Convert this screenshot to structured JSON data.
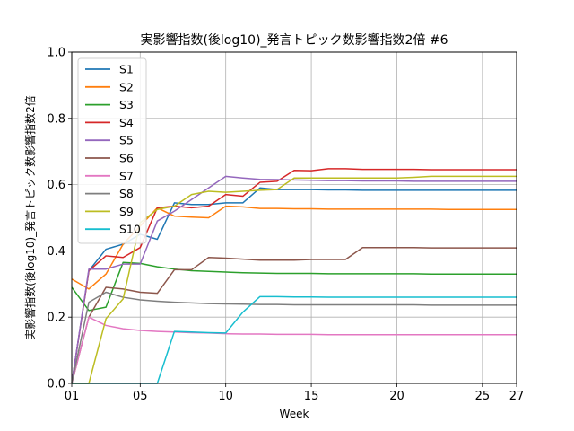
{
  "chart_data": {
    "type": "line",
    "title": "実影響指数(後log10)_発言トピック数影響指数2倍 #6",
    "xlabel": "Week",
    "ylabel": "実影響指数(後log10)_発言トピック数影響指数2倍",
    "xlim": [
      1,
      27
    ],
    "ylim": [
      0.0,
      1.0
    ],
    "x_ticks": [
      {
        "value": 1,
        "label": "01"
      },
      {
        "value": 5,
        "label": "05"
      },
      {
        "value": 10,
        "label": "10"
      },
      {
        "value": 15,
        "label": "15"
      },
      {
        "value": 20,
        "label": "20"
      },
      {
        "value": 25,
        "label": "25"
      },
      {
        "value": 27,
        "label": "27"
      }
    ],
    "y_ticks": [
      {
        "value": 0.0,
        "label": "0.0"
      },
      {
        "value": 0.2,
        "label": "0.2"
      },
      {
        "value": 0.4,
        "label": "0.4"
      },
      {
        "value": 0.6,
        "label": "0.6"
      },
      {
        "value": 0.8,
        "label": "0.8"
      },
      {
        "value": 1.0,
        "label": "1.0"
      }
    ],
    "grid": true,
    "legend_position": "top-left",
    "x": [
      1,
      2,
      3,
      4,
      5,
      6,
      7,
      8,
      9,
      10,
      11,
      12,
      13,
      14,
      15,
      16,
      17,
      18,
      19,
      20,
      21,
      22,
      23,
      24,
      25,
      26,
      27
    ],
    "series": [
      {
        "name": "S1",
        "color": "#1f77b4",
        "values": [
          0.0,
          0.34,
          0.405,
          0.42,
          0.45,
          0.435,
          0.545,
          0.54,
          0.54,
          0.545,
          0.545,
          0.59,
          0.585,
          0.585,
          0.585,
          0.584,
          0.584,
          0.583,
          0.583,
          0.583,
          0.583,
          0.583,
          0.583,
          0.583,
          0.583,
          0.583,
          0.583
        ]
      },
      {
        "name": "S2",
        "color": "#ff7f0e",
        "values": [
          0.315,
          0.285,
          0.33,
          0.42,
          0.475,
          0.53,
          0.505,
          0.502,
          0.5,
          0.535,
          0.533,
          0.528,
          0.528,
          0.527,
          0.527,
          0.526,
          0.526,
          0.526,
          0.526,
          0.526,
          0.526,
          0.526,
          0.525,
          0.525,
          0.525,
          0.525,
          0.525
        ]
      },
      {
        "name": "S3",
        "color": "#2ca02c",
        "values": [
          0.29,
          0.22,
          0.23,
          0.365,
          0.362,
          0.352,
          0.345,
          0.34,
          0.338,
          0.336,
          0.334,
          0.333,
          0.332,
          0.332,
          0.332,
          0.331,
          0.331,
          0.331,
          0.331,
          0.331,
          0.331,
          0.33,
          0.33,
          0.33,
          0.33,
          0.33,
          0.33
        ]
      },
      {
        "name": "S4",
        "color": "#d62728",
        "values": [
          0.0,
          0.34,
          0.385,
          0.38,
          0.41,
          0.53,
          0.535,
          0.53,
          0.535,
          0.57,
          0.565,
          0.607,
          0.61,
          0.643,
          0.642,
          0.648,
          0.648,
          0.646,
          0.646,
          0.646,
          0.646,
          0.645,
          0.645,
          0.645,
          0.645,
          0.645,
          0.645
        ]
      },
      {
        "name": "S5",
        "color": "#9467bd",
        "values": [
          0.0,
          0.345,
          0.345,
          0.36,
          0.36,
          0.49,
          0.52,
          0.555,
          0.59,
          0.625,
          0.62,
          0.616,
          0.615,
          0.614,
          0.613,
          0.612,
          0.612,
          0.611,
          0.611,
          0.611,
          0.61,
          0.61,
          0.61,
          0.61,
          0.61,
          0.61,
          0.61
        ]
      },
      {
        "name": "S6",
        "color": "#8c564b",
        "values": [
          0.0,
          0.2,
          0.29,
          0.285,
          0.275,
          0.272,
          0.343,
          0.343,
          0.38,
          0.378,
          0.375,
          0.372,
          0.372,
          0.372,
          0.374,
          0.374,
          0.374,
          0.41,
          0.41,
          0.41,
          0.41,
          0.409,
          0.409,
          0.409,
          0.409,
          0.409,
          0.409
        ]
      },
      {
        "name": "S7",
        "color": "#e377c2",
        "values": [
          0.0,
          0.2,
          0.175,
          0.165,
          0.16,
          0.157,
          0.155,
          0.153,
          0.152,
          0.15,
          0.149,
          0.149,
          0.148,
          0.148,
          0.148,
          0.147,
          0.147,
          0.147,
          0.147,
          0.147,
          0.147,
          0.147,
          0.147,
          0.147,
          0.147,
          0.147,
          0.147
        ]
      },
      {
        "name": "S8",
        "color": "#7f7f7f",
        "values": [
          0.0,
          0.245,
          0.275,
          0.26,
          0.252,
          0.248,
          0.245,
          0.243,
          0.241,
          0.24,
          0.239,
          0.238,
          0.238,
          0.237,
          0.237,
          0.237,
          0.237,
          0.237,
          0.237,
          0.237,
          0.237,
          0.236,
          0.236,
          0.236,
          0.236,
          0.236,
          0.236
        ]
      },
      {
        "name": "S9",
        "color": "#bcbd22",
        "values": [
          0.0,
          0.0,
          0.195,
          0.255,
          0.485,
          0.525,
          0.535,
          0.57,
          0.58,
          0.577,
          0.58,
          0.583,
          0.585,
          0.62,
          0.62,
          0.62,
          0.62,
          0.62,
          0.62,
          0.62,
          0.622,
          0.625,
          0.625,
          0.625,
          0.625,
          0.625,
          0.625
        ]
      },
      {
        "name": "S10",
        "color": "#17becf",
        "values": [
          0.0,
          0.0,
          0.0,
          0.0,
          0.0,
          0.0,
          0.157,
          0.155,
          0.153,
          0.152,
          0.215,
          0.262,
          0.262,
          0.261,
          0.261,
          0.26,
          0.26,
          0.26,
          0.26,
          0.26,
          0.26,
          0.26,
          0.26,
          0.26,
          0.26,
          0.26,
          0.26
        ]
      }
    ]
  }
}
